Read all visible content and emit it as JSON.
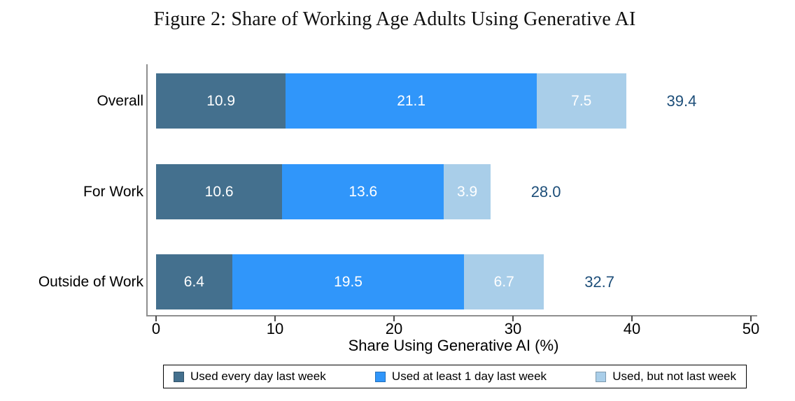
{
  "figure": {
    "title": "Figure 2: Share of Working Age Adults Using Generative AI"
  },
  "chart_data": {
    "type": "bar",
    "orientation": "horizontal",
    "stacked": true,
    "title": "Figure 2: Share of Working Age Adults Using Generative AI",
    "categories": [
      "Overall",
      "For Work",
      "Outside of Work"
    ],
    "series": [
      {
        "name": "Used every day last week",
        "color": "#44708e",
        "values": [
          10.9,
          10.6,
          6.4
        ]
      },
      {
        "name": "Used at least 1 day last week",
        "color": "#3096fa",
        "values": [
          21.1,
          13.6,
          19.5
        ]
      },
      {
        "name": "Used, but not last week",
        "color": "#a9cee9",
        "values": [
          7.5,
          3.9,
          6.7
        ]
      }
    ],
    "totals": [
      39.4,
      28.0,
      32.7
    ],
    "xlabel": "Share Using Generative AI (%)",
    "xlim": [
      0,
      50
    ],
    "xticks": [
      0,
      10,
      20,
      30,
      40,
      50
    ],
    "grid": false,
    "legend_position": "bottom",
    "colors": {
      "series_dark": "#44708e",
      "series_bright": "#3096fa",
      "series_light": "#a9cee9",
      "total_label": "#1d4e79",
      "axis_line": "#8f8f8f",
      "bar_value_text": "#ffffff"
    }
  }
}
